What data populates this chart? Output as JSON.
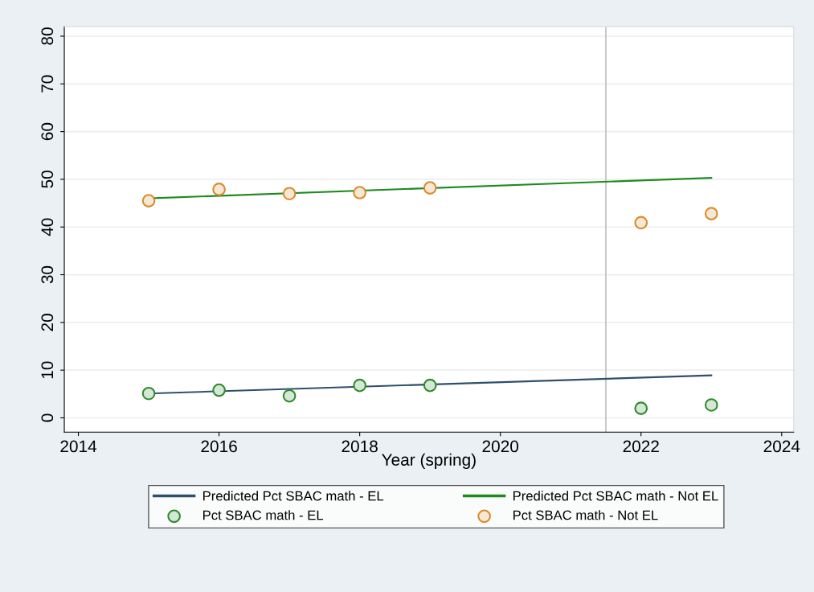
{
  "chart_data": {
    "type": "scatter",
    "xlabel": "Year (spring)",
    "xlim": [
      2013.8,
      2024.17
    ],
    "xticks": [
      2014,
      2016,
      2018,
      2020,
      2022,
      2024
    ],
    "ylim": [
      -3,
      82
    ],
    "yticks": [
      0,
      10,
      20,
      30,
      40,
      50,
      60,
      70,
      80
    ],
    "grid": "y",
    "legend": "bottom",
    "marker": "circle",
    "ref_lines": [
      {
        "axis": "x",
        "value": 2021.5,
        "color": "#bfbfbf"
      }
    ],
    "series": [
      {
        "name": "Predicted Pct SBAC math - EL",
        "type": "line",
        "color": "#2e4f6e",
        "marker": "none",
        "x": [
          2015,
          2023
        ],
        "values": [
          5.1,
          8.9
        ]
      },
      {
        "name": "Predicted Pct SBAC math - Not EL",
        "type": "line",
        "color": "#1f8a1f",
        "marker": "none",
        "x": [
          2015,
          2023
        ],
        "values": [
          46.0,
          50.3
        ]
      },
      {
        "name": "Pct SBAC math - EL",
        "color": "#2e8b2e",
        "x": [
          2015,
          2016,
          2017,
          2018,
          2019,
          2022,
          2023
        ],
        "values": [
          5.1,
          5.8,
          4.6,
          6.8,
          6.8,
          2.0,
          2.7
        ]
      },
      {
        "name": "Pct SBAC math - Not EL",
        "color": "#d98c2b",
        "x": [
          2015,
          2016,
          2017,
          2018,
          2019,
          2022,
          2023
        ],
        "values": [
          45.5,
          47.9,
          47.0,
          47.2,
          48.2,
          40.9,
          42.8
        ]
      }
    ]
  }
}
